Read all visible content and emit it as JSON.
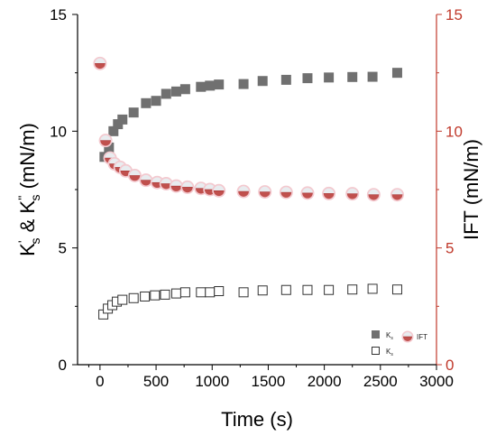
{
  "colors": {
    "left_axis": "#000000",
    "right_axis": "#c0392b",
    "ks_fill": "#707070",
    "ift_top": "#e8ecef",
    "ift_bottom": "#c0504d",
    "ift_ring": "#f3c9cf",
    "ks2_stroke": "#333333"
  },
  "legend": {
    "ks1_label": "K",
    "ks1_sub": "s",
    "ks2_label": "K",
    "ks2_sub": "s",
    "ift_label": "IFT"
  },
  "chart_data": {
    "type": "scatter",
    "title": "",
    "xlabel": "Time (s)",
    "ylabel_left": "K's & K''s (mN/m)",
    "ylabel_left_parts": {
      "k1": "K",
      "prime1": "'",
      "sub1": "s",
      "amp": " & K",
      "prime2": "''",
      "sub2": "s",
      "unit": " (mN/m)"
    },
    "ylabel_right": "IFT (mN/m)",
    "xlim": [
      -200,
      3000
    ],
    "ylim_left": [
      0,
      15
    ],
    "ylim_right": [
      0,
      15
    ],
    "x_ticks": [
      0,
      500,
      1000,
      1500,
      2000,
      2500,
      3000
    ],
    "y_ticks_left": [
      0,
      5,
      10,
      15
    ],
    "y_ticks_right": [
      0,
      5,
      10,
      15
    ],
    "grid": false,
    "legend_position": "bottom-right",
    "series": [
      {
        "name": "K's",
        "marker": "filled-square",
        "axis": "left",
        "points": [
          [
            40,
            8.9
          ],
          [
            80,
            9.3
          ],
          [
            120,
            10.0
          ],
          [
            160,
            10.3
          ],
          [
            200,
            10.5
          ],
          [
            300,
            10.8
          ],
          [
            410,
            11.2
          ],
          [
            500,
            11.3
          ],
          [
            590,
            11.6
          ],
          [
            680,
            11.7
          ],
          [
            760,
            11.8
          ],
          [
            900,
            11.9
          ],
          [
            980,
            11.95
          ],
          [
            1060,
            12.0
          ],
          [
            1280,
            12.02
          ],
          [
            1450,
            12.15
          ],
          [
            1660,
            12.2
          ],
          [
            1850,
            12.27
          ],
          [
            2040,
            12.3
          ],
          [
            2250,
            12.32
          ],
          [
            2430,
            12.33
          ],
          [
            2650,
            12.5
          ]
        ]
      },
      {
        "name": "K''s",
        "marker": "open-square",
        "axis": "left",
        "points": [
          [
            30,
            2.15
          ],
          [
            70,
            2.4
          ],
          [
            110,
            2.55
          ],
          [
            150,
            2.7
          ],
          [
            200,
            2.78
          ],
          [
            300,
            2.85
          ],
          [
            400,
            2.92
          ],
          [
            490,
            2.97
          ],
          [
            580,
            3.0
          ],
          [
            680,
            3.05
          ],
          [
            760,
            3.1
          ],
          [
            900,
            3.1
          ],
          [
            980,
            3.1
          ],
          [
            1060,
            3.15
          ],
          [
            1280,
            3.1
          ],
          [
            1450,
            3.18
          ],
          [
            1660,
            3.2
          ],
          [
            1850,
            3.2
          ],
          [
            2040,
            3.2
          ],
          [
            2250,
            3.22
          ],
          [
            2430,
            3.25
          ],
          [
            2650,
            3.22
          ]
        ]
      },
      {
        "name": "IFT",
        "marker": "half-filled-circle",
        "axis": "right",
        "points": [
          [
            0,
            12.9
          ],
          [
            50,
            9.6
          ],
          [
            90,
            8.85
          ],
          [
            130,
            8.6
          ],
          [
            180,
            8.45
          ],
          [
            230,
            8.3
          ],
          [
            310,
            8.1
          ],
          [
            410,
            7.9
          ],
          [
            510,
            7.8
          ],
          [
            590,
            7.75
          ],
          [
            680,
            7.65
          ],
          [
            780,
            7.6
          ],
          [
            900,
            7.55
          ],
          [
            980,
            7.5
          ],
          [
            1060,
            7.45
          ],
          [
            1280,
            7.42
          ],
          [
            1470,
            7.4
          ],
          [
            1660,
            7.38
          ],
          [
            1850,
            7.35
          ],
          [
            2040,
            7.33
          ],
          [
            2250,
            7.32
          ],
          [
            2440,
            7.28
          ],
          [
            2650,
            7.28
          ]
        ]
      }
    ]
  }
}
